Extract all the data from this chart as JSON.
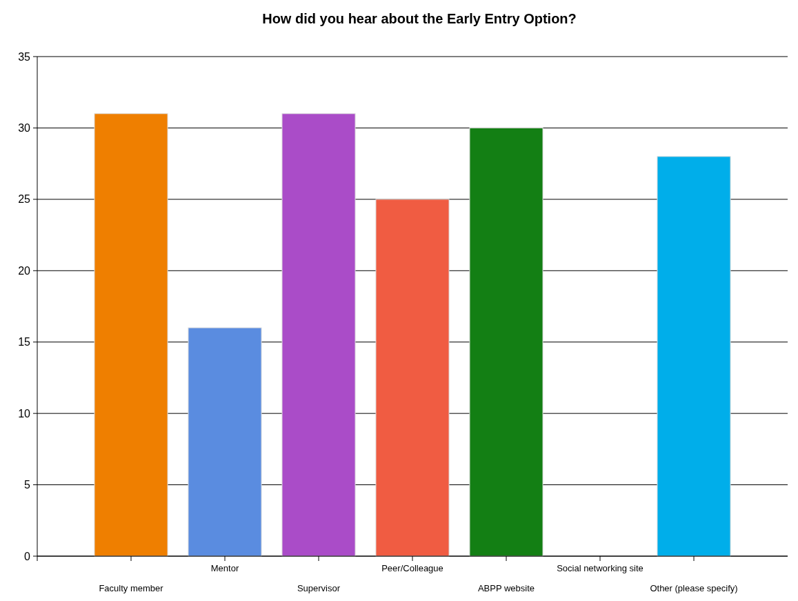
{
  "chart_data": {
    "type": "bar",
    "title": "How did you hear about the Early Entry Option?",
    "categories": [
      "Faculty member",
      "Mentor",
      "Supervisor",
      "Peer/Colleague",
      "ABPP website",
      "Social networking site",
      "Other (please specify)"
    ],
    "values": [
      31,
      16,
      31,
      25,
      30,
      0,
      28
    ],
    "colors": [
      "#ef7f00",
      "#5a8ce0",
      "#aa4cc8",
      "#f05c42",
      "#137f14",
      "#808080",
      "#00aeea"
    ],
    "ylim": [
      0,
      35
    ],
    "yticks": [
      0,
      5,
      10,
      15,
      20,
      25,
      30,
      35
    ],
    "grid": "y"
  }
}
